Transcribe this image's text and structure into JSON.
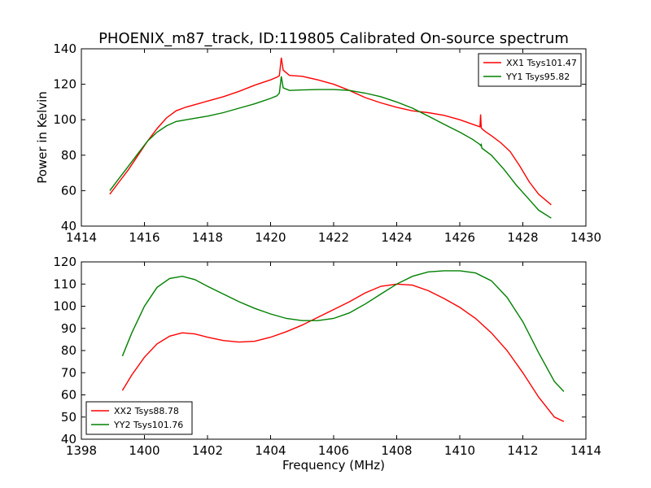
{
  "chart_data": [
    {
      "type": "line",
      "title": "PHOENIX_m87_track, ID:119805 Calibrated On-source spectrum",
      "xlabel": "",
      "ylabel": "Power in Kelvin",
      "xlim": [
        1414,
        1430
      ],
      "ylim": [
        40,
        140
      ],
      "xticks": [
        1414,
        1416,
        1418,
        1420,
        1422,
        1424,
        1426,
        1428,
        1430
      ],
      "yticks": [
        40,
        60,
        80,
        100,
        120,
        140
      ],
      "legend_position": "top-right",
      "series": [
        {
          "name": "XX1 Tsys101.47",
          "color": "#ff0000",
          "x": [
            1414.9,
            1415.2,
            1415.5,
            1415.8,
            1416.1,
            1416.4,
            1416.7,
            1417.0,
            1417.3,
            1417.6,
            1418.0,
            1418.5,
            1419.0,
            1419.5,
            1420.0,
            1420.2,
            1420.28,
            1420.34,
            1420.4,
            1420.6,
            1421.0,
            1421.5,
            1422.0,
            1422.5,
            1423.0,
            1423.5,
            1424.0,
            1424.5,
            1425.0,
            1425.5,
            1426.0,
            1426.4,
            1426.64,
            1426.66,
            1426.68,
            1426.7,
            1426.8,
            1427.0,
            1427.3,
            1427.6,
            1427.9,
            1428.2,
            1428.5,
            1428.9
          ],
          "values": [
            58,
            65,
            72,
            80,
            88,
            95,
            101,
            105,
            107,
            108.5,
            110.5,
            113,
            116,
            119.5,
            122.5,
            124,
            124.8,
            135,
            128,
            125,
            124.5,
            122.5,
            120,
            116.5,
            112.5,
            109.5,
            107,
            105,
            104,
            102.5,
            100,
            97.5,
            96,
            103,
            95.5,
            95,
            93.5,
            91,
            87,
            82,
            74,
            65,
            58,
            52
          ]
        },
        {
          "name": "YY1 Tsys95.82",
          "color": "#008000",
          "x": [
            1414.9,
            1415.2,
            1415.5,
            1415.8,
            1416.1,
            1416.4,
            1416.7,
            1417.0,
            1417.5,
            1418.0,
            1418.5,
            1419.0,
            1419.5,
            1420.0,
            1420.2,
            1420.28,
            1420.34,
            1420.4,
            1420.6,
            1421.0,
            1421.5,
            1422.0,
            1422.5,
            1423.0,
            1423.5,
            1424.0,
            1424.5,
            1425.0,
            1425.5,
            1426.0,
            1426.4,
            1426.64,
            1426.66,
            1426.68,
            1426.7,
            1427.0,
            1427.4,
            1427.8,
            1428.2,
            1428.5,
            1428.9
          ],
          "values": [
            60,
            67,
            74,
            81,
            88,
            93,
            96.5,
            99,
            100.5,
            102,
            104,
            106.5,
            109,
            112,
            113.5,
            115,
            124.5,
            118,
            116.5,
            116.8,
            117,
            117,
            116.5,
            115,
            113,
            110,
            106.5,
            102,
            97.5,
            93,
            89,
            86,
            85.5,
            86,
            84,
            80,
            72,
            63,
            55,
            49,
            44.5
          ]
        }
      ]
    },
    {
      "type": "line",
      "title": "",
      "xlabel": "Frequency (MHz)",
      "ylabel": "",
      "xlim": [
        1398,
        1414
      ],
      "ylim": [
        40,
        120
      ],
      "xticks": [
        1398,
        1400,
        1402,
        1404,
        1406,
        1408,
        1410,
        1412,
        1414
      ],
      "yticks": [
        40,
        50,
        60,
        70,
        80,
        90,
        100,
        110,
        120
      ],
      "legend_position": "bottom-left",
      "series": [
        {
          "name": "XX2 Tsys88.78",
          "color": "#ff0000",
          "x": [
            1399.3,
            1399.6,
            1400.0,
            1400.4,
            1400.8,
            1401.2,
            1401.6,
            1402.0,
            1402.5,
            1403.0,
            1403.5,
            1404.0,
            1404.5,
            1405.0,
            1405.5,
            1406.0,
            1406.5,
            1407.0,
            1407.5,
            1408.0,
            1408.5,
            1409.0,
            1409.5,
            1410.0,
            1410.5,
            1411.0,
            1411.5,
            1412.0,
            1412.5,
            1413.0,
            1413.3
          ],
          "values": [
            62,
            69,
            77,
            83,
            86.5,
            88,
            87.5,
            86,
            84.5,
            83.8,
            84.2,
            86,
            88.5,
            91.5,
            95,
            98.5,
            102,
            106,
            109,
            110,
            109.5,
            107,
            103.5,
            99.5,
            94.5,
            88,
            80,
            70,
            59,
            50,
            48
          ]
        },
        {
          "name": "YY2 Tsys101.76",
          "color": "#008000",
          "x": [
            1399.3,
            1399.6,
            1400.0,
            1400.4,
            1400.8,
            1401.2,
            1401.6,
            1402.0,
            1402.5,
            1403.0,
            1403.5,
            1404.0,
            1404.5,
            1405.0,
            1405.5,
            1406.0,
            1406.5,
            1407.0,
            1407.5,
            1408.0,
            1408.5,
            1409.0,
            1409.5,
            1410.0,
            1410.5,
            1411.0,
            1411.5,
            1412.0,
            1412.5,
            1413.0,
            1413.3
          ],
          "values": [
            77.5,
            88,
            100,
            108.5,
            112.5,
            113.5,
            112,
            109,
            105.5,
            102,
            99,
            96.5,
            94.5,
            93.5,
            93.5,
            94.5,
            97,
            101,
            105.5,
            110,
            113.5,
            115.5,
            116,
            116,
            115,
            111.5,
            104,
            93,
            79,
            66,
            61.5
          ]
        }
      ]
    }
  ]
}
